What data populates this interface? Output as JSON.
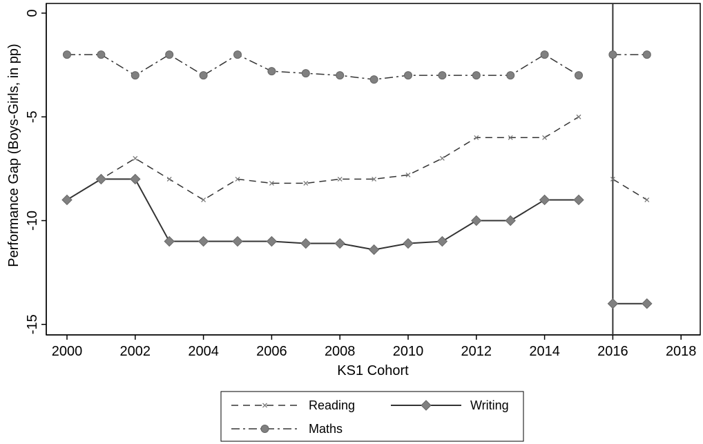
{
  "chart_data": {
    "type": "line",
    "xlabel": "KS1 Cohort",
    "ylabel": "Performance Gap (Boys-Girls, in pp)",
    "xlim": [
      2000,
      2018
    ],
    "ylim": [
      -15.5,
      0.3
    ],
    "xticks": [
      2000,
      2002,
      2004,
      2006,
      2008,
      2010,
      2012,
      2014,
      2016,
      2018
    ],
    "yticks": [
      0,
      -5,
      -10,
      -15
    ],
    "xtick_labels": [
      "2000",
      "2002",
      "2004",
      "2006",
      "2008",
      "2010",
      "2012",
      "2014",
      "2016",
      "2018"
    ],
    "ytick_labels": [
      "0",
      "-5",
      "-10",
      "-15"
    ],
    "vertical_line_x": 2016,
    "grid": false,
    "legend_position": "bottom",
    "series": [
      {
        "name": "Reading",
        "style": "dashed",
        "marker": "x",
        "color": "#333333",
        "segments": [
          {
            "x": [
              2000,
              2001,
              2002,
              2003,
              2004,
              2005,
              2006,
              2007,
              2008,
              2009,
              2010,
              2011,
              2012,
              2013,
              2014,
              2015
            ],
            "y": [
              -9,
              -8,
              -7,
              -8,
              -9,
              -8,
              -8.2,
              -8.2,
              -8,
              -8,
              -7.8,
              -7,
              -6,
              -6,
              -6,
              -5
            ]
          },
          {
            "x": [
              2016,
              2017
            ],
            "y": [
              -8,
              -9
            ]
          }
        ]
      },
      {
        "name": "Writing",
        "style": "solid",
        "marker": "diamond",
        "color": "#333333",
        "segments": [
          {
            "x": [
              2000,
              2001,
              2002,
              2003,
              2004,
              2005,
              2006,
              2007,
              2008,
              2009,
              2010,
              2011,
              2012,
              2013,
              2014,
              2015
            ],
            "y": [
              -9,
              -8,
              -8,
              -11,
              -11,
              -11,
              -11,
              -11.1,
              -11.1,
              -11.4,
              -11.1,
              -11,
              -10,
              -10,
              -9,
              -9
            ]
          },
          {
            "x": [
              2016,
              2017
            ],
            "y": [
              -14,
              -14
            ]
          }
        ]
      },
      {
        "name": "Maths",
        "style": "dashdot",
        "marker": "circle",
        "color": "#333333",
        "segments": [
          {
            "x": [
              2000,
              2001,
              2002,
              2003,
              2004,
              2005,
              2006,
              2007,
              2008,
              2009,
              2010,
              2011,
              2012,
              2013,
              2014,
              2015
            ],
            "y": [
              -2,
              -2,
              -3,
              -2,
              -3,
              -2,
              -2.8,
              -2.9,
              -3,
              -3.2,
              -3,
              -3,
              -3,
              -3,
              -2,
              -3
            ]
          },
          {
            "x": [
              2016,
              2017
            ],
            "y": [
              -2,
              -2
            ]
          }
        ]
      }
    ]
  },
  "legend": {
    "items": [
      "Reading",
      "Writing",
      "Maths"
    ]
  }
}
